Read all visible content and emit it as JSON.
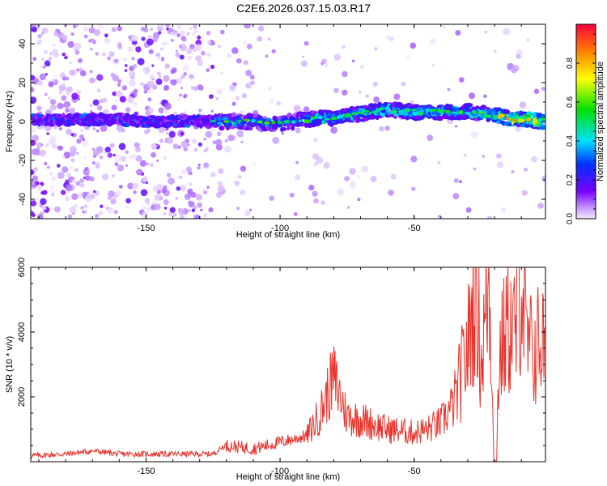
{
  "title": "C2E6.2026.037.15.03.R17",
  "colors": {
    "low": "#e8d8ff",
    "mid": "#7a00ff",
    "line": "#e8342d"
  },
  "chart_data": [
    {
      "type": "heatmap",
      "xlabel": "Height of straight line (km)",
      "ylabel": "Frequency (Hz)",
      "xlim": [
        -193,
        -1
      ],
      "ylim": [
        -50,
        50
      ],
      "xticks": [
        -150,
        -100,
        -50
      ],
      "xtick_labels": [
        "-150",
        "-100",
        "-50"
      ],
      "yticks": [
        40,
        20,
        0,
        -20,
        -40
      ],
      "ytick_labels": [
        "40",
        "20",
        "0",
        "-20",
        "-40"
      ],
      "colorbar": {
        "label": "Normalized spectral amplitude",
        "range": [
          0,
          1
        ],
        "ticks": [
          0.0,
          0.2,
          0.4,
          0.6,
          0.8
        ],
        "tick_labels": [
          "0.0",
          "0.2",
          "0.4",
          "0.6",
          "0.8"
        ]
      },
      "ridge": {
        "x": [
          -185,
          -170,
          -160,
          -150,
          -140,
          -125,
          -115,
          -100,
          -90,
          -80,
          -70,
          -60,
          -50,
          -40,
          -30,
          -20,
          -10,
          -3
        ],
        "y": [
          1,
          1,
          1,
          0,
          0,
          0,
          0,
          -1,
          1,
          2,
          4,
          6,
          5,
          5,
          5,
          3,
          1,
          0
        ]
      }
    },
    {
      "type": "line",
      "xlabel": "Height of straight line (km)",
      "ylabel": "SNR (10 * v/v)",
      "xlim": [
        -193,
        -1
      ],
      "ylim": [
        0,
        6000
      ],
      "xticks": [
        -150,
        -100,
        -50
      ],
      "xtick_labels": [
        "-150",
        "-100",
        "-50"
      ],
      "yticks": [
        6000,
        4000,
        2000
      ],
      "ytick_labels": [
        "6000",
        "4000",
        "2000"
      ],
      "series": [
        {
          "name": "SNR",
          "x": [
            -193,
            -180,
            -170,
            -160,
            -140,
            -125,
            -120,
            -110,
            -100,
            -90,
            -85,
            -80,
            -75,
            -70,
            -60,
            -50,
            -45,
            -40,
            -35,
            -30,
            -27,
            -25,
            -22,
            -20,
            -18,
            -15,
            -12,
            -10,
            -8,
            -5,
            -3,
            -1
          ],
          "y": [
            150,
            200,
            300,
            200,
            200,
            200,
            500,
            400,
            600,
            800,
            1500,
            2600,
            1400,
            1300,
            1000,
            900,
            1000,
            1200,
            1800,
            3500,
            5600,
            3000,
            5700,
            0,
            3300,
            4200,
            4000,
            5900,
            3500,
            3400,
            3800,
            3600
          ]
        }
      ]
    }
  ]
}
